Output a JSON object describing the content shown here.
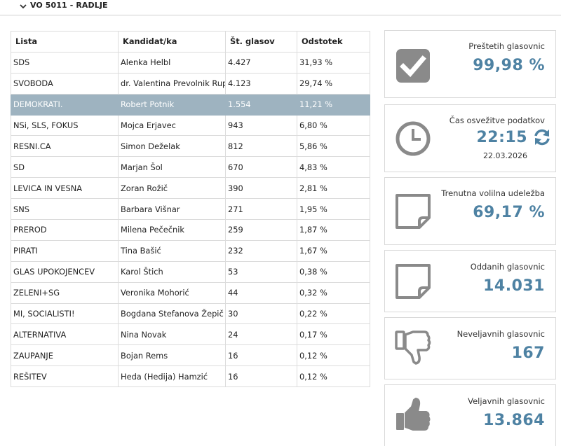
{
  "header": {
    "title": "VO 5011 - RADLJE",
    "toggle_icon": "chevron-down-icon"
  },
  "table": {
    "columns": [
      "Lista",
      "Kandidat/ka",
      "Št. glasov",
      "Odstotek"
    ],
    "rows": [
      {
        "lista": "SDS",
        "kandidat": "Alenka Helbl",
        "glasov": "4.427",
        "odstotek": "31,93 %"
      },
      {
        "lista": "SVOBODA",
        "kandidat": "dr. Valentina Prevolnik Rupel",
        "glasov": "4.123",
        "odstotek": "29,74 %"
      },
      {
        "lista": "DEMOKRATI.",
        "kandidat": "Robert Potnik",
        "glasov": "1.554",
        "odstotek": "11,21 %",
        "highlighted": true
      },
      {
        "lista": "NSi, SLS, FOKUS",
        "kandidat": "Mojca Erjavec",
        "glasov": "943",
        "odstotek": "6,80 %"
      },
      {
        "lista": "RESNI.CA",
        "kandidat": "Simon Deželak",
        "glasov": "812",
        "odstotek": "5,86 %"
      },
      {
        "lista": "SD",
        "kandidat": "Marjan Šol",
        "glasov": "670",
        "odstotek": "4,83 %"
      },
      {
        "lista": "LEVICA IN VESNA",
        "kandidat": "Zoran Rožič",
        "glasov": "390",
        "odstotek": "2,81 %"
      },
      {
        "lista": "SNS",
        "kandidat": "Barbara Višnar",
        "glasov": "271",
        "odstotek": "1,95 %"
      },
      {
        "lista": "PREROD",
        "kandidat": "Milena Pečečnik",
        "glasov": "259",
        "odstotek": "1,87 %"
      },
      {
        "lista": "PIRATI",
        "kandidat": "Tina Bašić",
        "glasov": "232",
        "odstotek": "1,67 %"
      },
      {
        "lista": "GLAS UPOKOJENCEV",
        "kandidat": "Karol Štich",
        "glasov": "53",
        "odstotek": "0,38 %"
      },
      {
        "lista": "ZELENI+SG",
        "kandidat": "Veronika Mohorić",
        "glasov": "44",
        "odstotek": "0,32 %"
      },
      {
        "lista": "MI, SOCIALISTI!",
        "kandidat": "Bogdana Stefanova Žepič",
        "glasov": "30",
        "odstotek": "0,22 %"
      },
      {
        "lista": "ALTERNATIVA",
        "kandidat": "Nina Novak",
        "glasov": "24",
        "odstotek": "0,17 %"
      },
      {
        "lista": "ZAUPANJE",
        "kandidat": "Bojan Rems",
        "glasov": "16",
        "odstotek": "0,12 %"
      },
      {
        "lista": "REŠITEV",
        "kandidat": "Heda (Hedija) Hamzić",
        "glasov": "16",
        "odstotek": "0,12 %"
      }
    ]
  },
  "stats": {
    "counted": {
      "label": "Preštetih glasovnic",
      "value": "99,98 %",
      "icon": "checkbox-icon"
    },
    "refresh": {
      "label": "Čas osvežitve podatkov",
      "time": "22:15",
      "date": "22.03.2026",
      "icon": "clock-icon",
      "action_icon": "refresh-icon"
    },
    "turnout": {
      "label": "Trenutna volilna udeležba",
      "value": "69,17 %",
      "icon": "note-icon"
    },
    "cast": {
      "label": "Oddanih glasovnic",
      "value": "14.031",
      "icon": "note-icon"
    },
    "invalid": {
      "label": "Neveljavnih glasovnic",
      "value": "167",
      "icon": "thumbs-down-icon"
    },
    "valid": {
      "label": "Veljavnih glasovnic",
      "value": "13.864",
      "icon": "thumbs-up-icon"
    }
  },
  "colors": {
    "accent": "#4e82a3",
    "highlight_row": "#9eb3c0",
    "icon_gray": "#8a8a8a"
  }
}
